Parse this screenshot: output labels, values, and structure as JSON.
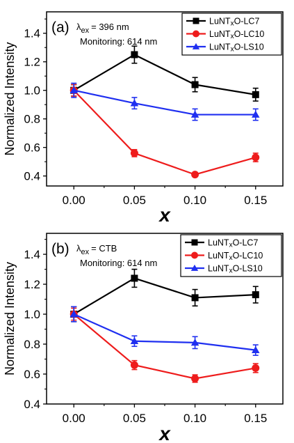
{
  "chart_data": [
    {
      "type": "line",
      "panel_label": "(a)",
      "excitation_symbol": "λ",
      "excitation_subscript": "ex",
      "excitation_value": "= 396 nm",
      "monitoring": "Monitoring: 614 nm",
      "xlabel": "x",
      "ylabel": "Normalized Intensity",
      "x": [
        0.0,
        0.05,
        0.1,
        0.15
      ],
      "x_tick_labels": [
        "0.00",
        "0.05",
        "0.10",
        "0.15"
      ],
      "xlim": [
        -0.0225,
        0.1725
      ],
      "ylim": [
        0.33,
        1.55
      ],
      "y_ticks": [
        0.4,
        0.6,
        0.8,
        1.0,
        1.2,
        1.4
      ],
      "y_tick_labels": [
        "0.4",
        "0.6",
        "0.8",
        "1.0",
        "1.2",
        "1.4"
      ],
      "legend_position": "top-right",
      "series": [
        {
          "name": "LuNTxO-LC7",
          "name_prefix": "LuNT",
          "name_sub": "x",
          "name_suffix": "O-LC7",
          "color": "#000000",
          "marker": "square",
          "values": [
            1.0,
            1.25,
            1.04,
            0.97
          ],
          "errors": [
            0.04,
            0.06,
            0.05,
            0.045
          ]
        },
        {
          "name": "LuNTxO-LC10",
          "name_prefix": "LuNT",
          "name_sub": "x",
          "name_suffix": "O-LC10",
          "color": "#ee1c1c",
          "marker": "circle",
          "values": [
            1.0,
            0.56,
            0.41,
            0.53
          ],
          "errors": [
            0.04,
            0.025,
            0.015,
            0.03
          ]
        },
        {
          "name": "LuNTxO-LS10",
          "name_prefix": "LuNT",
          "name_sub": "x",
          "name_suffix": "O-LS10",
          "color": "#1f2ff0",
          "marker": "triangle",
          "values": [
            1.0,
            0.91,
            0.83,
            0.83
          ],
          "errors": [
            0.05,
            0.04,
            0.04,
            0.04
          ]
        }
      ]
    },
    {
      "type": "line",
      "panel_label": "(b)",
      "excitation_symbol": "λ",
      "excitation_subscript": "ex",
      "excitation_value": "= CTB",
      "monitoring": "Monitoring: 614 nm",
      "xlabel": "x",
      "ylabel": "Normalized Intensity",
      "x": [
        0.0,
        0.05,
        0.1,
        0.15
      ],
      "x_tick_labels": [
        "0.00",
        "0.05",
        "0.10",
        "0.15"
      ],
      "xlim": [
        -0.0225,
        0.1725
      ],
      "ylim": [
        0.4,
        1.54
      ],
      "y_ticks": [
        0.4,
        0.6,
        0.8,
        1.0,
        1.2,
        1.4
      ],
      "y_tick_labels": [
        "0.4",
        "0.6",
        "0.8",
        "1.0",
        "1.2",
        "1.4"
      ],
      "legend_position": "top-right",
      "series": [
        {
          "name": "LuNTxO-LC7",
          "name_prefix": "LuNT",
          "name_sub": "x",
          "name_suffix": "O-LC7",
          "color": "#000000",
          "marker": "square",
          "values": [
            1.0,
            1.24,
            1.11,
            1.13
          ],
          "errors": [
            0.05,
            0.06,
            0.055,
            0.055
          ]
        },
        {
          "name": "LuNTxO-LC10",
          "name_prefix": "LuNT",
          "name_sub": "x",
          "name_suffix": "O-LC10",
          "color": "#ee1c1c",
          "marker": "circle",
          "values": [
            1.0,
            0.66,
            0.57,
            0.64
          ],
          "errors": [
            0.04,
            0.03,
            0.025,
            0.03
          ]
        },
        {
          "name": "LuNTxO-LS10",
          "name_prefix": "LuNT",
          "name_sub": "x",
          "name_suffix": "O-LS10",
          "color": "#1f2ff0",
          "marker": "triangle",
          "values": [
            1.0,
            0.82,
            0.81,
            0.76
          ],
          "errors": [
            0.05,
            0.035,
            0.04,
            0.035
          ]
        }
      ]
    }
  ]
}
